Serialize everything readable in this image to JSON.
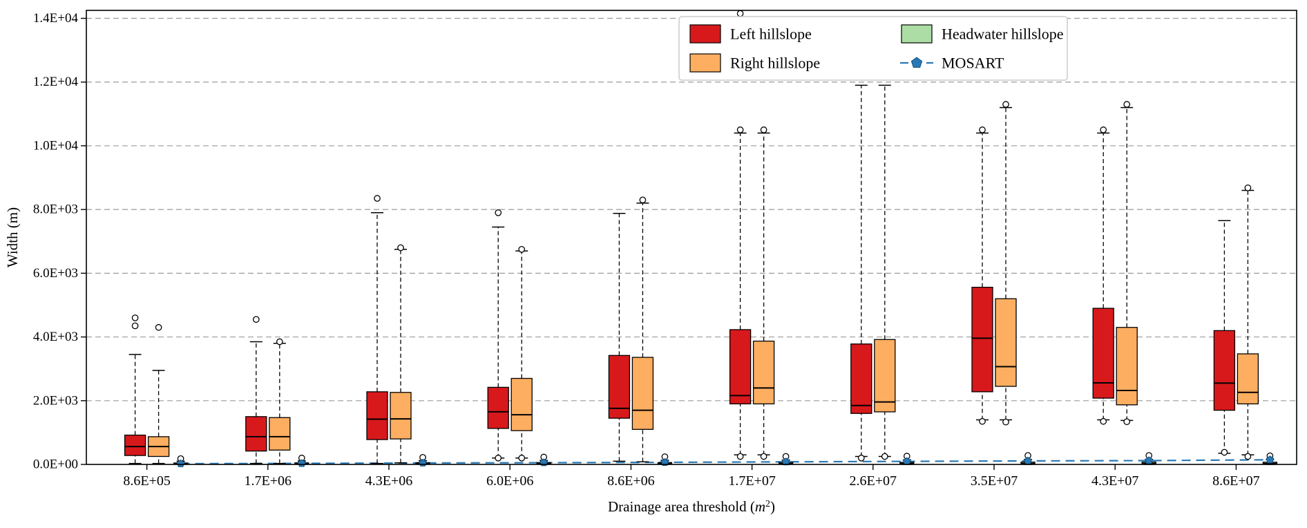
{
  "chart_data": {
    "type": "bar",
    "subtype": "grouped-boxplot",
    "title": "",
    "xlabel": "Drainage area threshold (m²)",
    "ylabel": "Width (m)",
    "ylim": [
      0,
      14250
    ],
    "grid": "horizontal-dashed",
    "legend": {
      "position": "upper-right",
      "items": [
        {
          "label": "Left hillslope",
          "marker": "patch",
          "color": "#d7191c"
        },
        {
          "label": "Right hillslope",
          "marker": "patch",
          "color": "#fdae61"
        },
        {
          "label": "Headwater hillslope",
          "marker": "patch",
          "color": "#abdda4"
        },
        {
          "label": "MOSART",
          "marker": "line-pentagon",
          "color": "#2878b5"
        }
      ]
    },
    "categories": [
      "8.6E+05",
      "1.7E+06",
      "4.3E+06",
      "6.0E+06",
      "8.6E+06",
      "1.7E+07",
      "2.6E+07",
      "3.5E+07",
      "4.3E+07",
      "8.6E+07"
    ],
    "yticks": [
      {
        "value": 0,
        "label": "0.0E+00"
      },
      {
        "value": 2000,
        "label": "2.0E+03"
      },
      {
        "value": 4000,
        "label": "4.0E+03"
      },
      {
        "value": 6000,
        "label": "6.0E+03"
      },
      {
        "value": 8000,
        "label": "8.0E+03"
      },
      {
        "value": 10000,
        "label": "1.0E+04"
      },
      {
        "value": 12000,
        "label": "1.2E+04"
      },
      {
        "value": 14000,
        "label": "1.4E+04"
      }
    ],
    "series": [
      {
        "name": "Left hillslope",
        "type": "box",
        "color": "#d7191c",
        "boxes": [
          {
            "low": 30,
            "q1": 280,
            "med": 560,
            "q3": 920,
            "high": 3450,
            "outliers": [
              4350,
              4600
            ]
          },
          {
            "low": 30,
            "q1": 420,
            "med": 870,
            "q3": 1500,
            "high": 3850,
            "outliers": [
              4550
            ]
          },
          {
            "low": 30,
            "q1": 780,
            "med": 1420,
            "q3": 2280,
            "high": 7900,
            "outliers": [
              8350
            ]
          },
          {
            "low": 200,
            "q1": 1130,
            "med": 1650,
            "q3": 2420,
            "high": 7450,
            "outliers": [
              7900,
              200
            ]
          },
          {
            "low": 100,
            "q1": 1450,
            "med": 1760,
            "q3": 3420,
            "high": 7880,
            "outliers": []
          },
          {
            "low": 300,
            "q1": 1900,
            "med": 2160,
            "q3": 4230,
            "high": 10400,
            "outliers": [
              10500,
              14150,
              250
            ]
          },
          {
            "low": 250,
            "q1": 1600,
            "med": 1850,
            "q3": 3780,
            "high": 11900,
            "outliers": [
              200
            ]
          },
          {
            "low": 1400,
            "q1": 2280,
            "med": 3960,
            "q3": 5560,
            "high": 10400,
            "outliers": [
              10500,
              1350
            ]
          },
          {
            "low": 1400,
            "q1": 2080,
            "med": 2560,
            "q3": 4900,
            "high": 10400,
            "outliers": [
              10500,
              1350
            ]
          },
          {
            "low": 350,
            "q1": 1700,
            "med": 2550,
            "q3": 4200,
            "high": 7650,
            "outliers": [
              380
            ]
          }
        ]
      },
      {
        "name": "Right hillslope",
        "type": "box",
        "color": "#fdae61",
        "boxes": [
          {
            "low": 30,
            "q1": 250,
            "med": 560,
            "q3": 870,
            "high": 2950,
            "outliers": [
              4300
            ]
          },
          {
            "low": 30,
            "q1": 450,
            "med": 870,
            "q3": 1470,
            "high": 3800,
            "outliers": [
              3850
            ]
          },
          {
            "low": 50,
            "q1": 800,
            "med": 1430,
            "q3": 2260,
            "high": 6750,
            "outliers": [
              6800
            ]
          },
          {
            "low": 200,
            "q1": 1060,
            "med": 1560,
            "q3": 2700,
            "high": 6700,
            "outliers": [
              6750,
              200
            ]
          },
          {
            "low": 80,
            "q1": 1100,
            "med": 1700,
            "q3": 3360,
            "high": 8200,
            "outliers": [
              8300
            ]
          },
          {
            "low": 300,
            "q1": 1900,
            "med": 2400,
            "q3": 3870,
            "high": 10400,
            "outliers": [
              10500,
              250
            ]
          },
          {
            "low": 250,
            "q1": 1650,
            "med": 1960,
            "q3": 3920,
            "high": 11900,
            "outliers": [
              250
            ]
          },
          {
            "low": 1400,
            "q1": 2450,
            "med": 3070,
            "q3": 5200,
            "high": 11200,
            "outliers": [
              11300,
              1330
            ]
          },
          {
            "low": 1380,
            "q1": 1870,
            "med": 2320,
            "q3": 4300,
            "high": 11200,
            "outliers": [
              11300,
              1340
            ]
          },
          {
            "low": 300,
            "q1": 1900,
            "med": 2260,
            "q3": 3470,
            "high": 8600,
            "outliers": [
              8680,
              250
            ]
          }
        ]
      },
      {
        "name": "Headwater hillslope",
        "type": "box",
        "color": "#abdda4",
        "boxes": [
          {
            "low": 0,
            "q1": 6,
            "med": 18,
            "q3": 45,
            "high": 100,
            "outliers": [
              180
            ]
          },
          {
            "low": 0,
            "q1": 7,
            "med": 20,
            "q3": 50,
            "high": 110,
            "outliers": [
              200
            ]
          },
          {
            "low": 0,
            "q1": 8,
            "med": 22,
            "q3": 55,
            "high": 120,
            "outliers": [
              220
            ]
          },
          {
            "low": 0,
            "q1": 8,
            "med": 22,
            "q3": 58,
            "high": 125,
            "outliers": [
              230
            ]
          },
          {
            "low": 0,
            "q1": 9,
            "med": 24,
            "q3": 60,
            "high": 130,
            "outliers": [
              240
            ]
          },
          {
            "low": 0,
            "q1": 10,
            "med": 25,
            "q3": 65,
            "high": 140,
            "outliers": [
              250
            ]
          },
          {
            "low": 0,
            "q1": 10,
            "med": 26,
            "q3": 68,
            "high": 145,
            "outliers": [
              260
            ]
          },
          {
            "low": 0,
            "q1": 12,
            "med": 30,
            "q3": 75,
            "high": 160,
            "outliers": [
              280
            ]
          },
          {
            "low": 0,
            "q1": 12,
            "med": 30,
            "q3": 75,
            "high": 160,
            "outliers": [
              280
            ]
          },
          {
            "low": 0,
            "q1": 12,
            "med": 28,
            "q3": 70,
            "high": 150,
            "outliers": [
              270
            ]
          }
        ]
      },
      {
        "name": "MOSART",
        "type": "line",
        "color": "#2878b5",
        "marker": "pentagon",
        "values": [
          24,
          32,
          45,
          55,
          65,
          80,
          95,
          110,
          120,
          145
        ]
      }
    ]
  }
}
